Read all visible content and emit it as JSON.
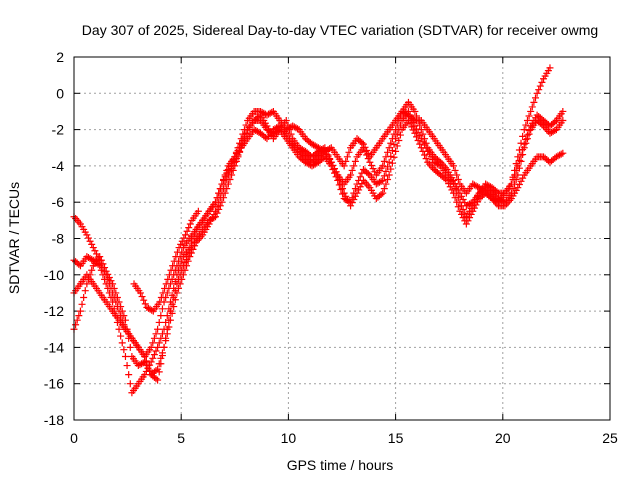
{
  "chart_data": {
    "type": "scatter",
    "title": "Day 307 of 2025, Sidereal Day-to-day VTEC variation (SDTVAR) for receiver owmg",
    "xlabel": "GPS time / hours",
    "ylabel": "SDTVAR / TECUs",
    "xlim": [
      0,
      25
    ],
    "ylim": [
      -18,
      2
    ],
    "xticks": [
      0,
      5,
      10,
      15,
      20,
      25
    ],
    "yticks": [
      -18,
      -16,
      -14,
      -12,
      -10,
      -8,
      -6,
      -4,
      -2,
      0,
      2
    ],
    "grid": true,
    "legend": "none",
    "marker": "plus",
    "color": "#ff0000",
    "series": [
      {
        "x": [
          0.0,
          0.3,
          0.6,
          0.9,
          1.2,
          1.5,
          1.8,
          2.1,
          2.4,
          2.7,
          3.0,
          3.3,
          3.6,
          3.9,
          4.2,
          4.5,
          4.8,
          5.1,
          5.4,
          5.7,
          6.0,
          6.3,
          6.6,
          6.9,
          7.2,
          7.5,
          7.8,
          8.1,
          8.4,
          8.7,
          9.0,
          9.3,
          9.6,
          9.9,
          10.2,
          10.5,
          10.8,
          11.1,
          11.4,
          11.7,
          12.0,
          12.3,
          12.6,
          12.9,
          13.2,
          13.5,
          13.8,
          14.1,
          14.4,
          14.7,
          15.0,
          15.3,
          15.6,
          15.9,
          16.2,
          16.5,
          16.8,
          17.1,
          17.4,
          17.7,
          18.0,
          18.3,
          18.6,
          18.9,
          19.2,
          19.5,
          19.8,
          20.1,
          20.4,
          20.7,
          21.0,
          21.3,
          21.6,
          21.9,
          22.2
        ],
        "y": [
          -11.0,
          -10.5,
          -10.0,
          -10.5,
          -11.0,
          -11.5,
          -12.0,
          -12.5,
          -13.0,
          -13.5,
          -14.0,
          -14.5,
          -14.0,
          -13.0,
          -11.5,
          -10.5,
          -9.5,
          -8.5,
          -8.0,
          -7.5,
          -7.0,
          -6.5,
          -6.0,
          -5.0,
          -4.0,
          -3.5,
          -2.5,
          -1.5,
          -1.0,
          -1.0,
          -1.2,
          -1.0,
          -1.5,
          -2.0,
          -1.8,
          -2.0,
          -2.5,
          -2.8,
          -3.0,
          -3.2,
          -3.0,
          -3.5,
          -4.0,
          -3.0,
          -2.5,
          -2.8,
          -3.5,
          -3.0,
          -2.5,
          -2.0,
          -1.5,
          -1.0,
          -1.2,
          -1.5,
          -1.5,
          -2.0,
          -2.5,
          -3.0,
          -3.5,
          -4.0,
          -5.0,
          -5.5,
          -5.0,
          -5.2,
          -5.5,
          -5.8,
          -6.0,
          -5.5,
          -5.0,
          -3.5,
          -2.0,
          -1.0,
          0.0,
          0.8,
          1.4
        ]
      },
      {
        "x": [
          0.0,
          0.3,
          0.6,
          0.9,
          1.2,
          1.5,
          1.8,
          2.1,
          2.4,
          2.7,
          3.0,
          3.3,
          3.6,
          3.9,
          4.2,
          4.5,
          4.8,
          5.1,
          5.4,
          5.7,
          6.0,
          6.3,
          6.6,
          6.9,
          7.2,
          7.5,
          7.8,
          8.1,
          8.4,
          8.7,
          9.0,
          9.3,
          9.6,
          9.9,
          10.2,
          10.5,
          10.8,
          11.1,
          11.4,
          11.7,
          12.0,
          12.3,
          12.6,
          12.9,
          13.2,
          13.5,
          13.8,
          14.1,
          14.4,
          14.7,
          15.0,
          15.3,
          15.6,
          15.9,
          16.2,
          16.5,
          16.8,
          17.1,
          17.4,
          17.7,
          18.0,
          18.3,
          18.6,
          18.9,
          19.2,
          19.5,
          19.8,
          20.1,
          20.4,
          20.7,
          21.0,
          21.3,
          21.6,
          21.9,
          22.2,
          22.5,
          22.8
        ],
        "y": [
          -6.8,
          -7.2,
          -7.8,
          -8.5,
          -9.2,
          -10.0,
          -11.0,
          -12.0,
          -13.0,
          -13.5,
          -14.0,
          -14.5,
          -15.5,
          -15.8,
          -14.0,
          -12.0,
          -10.5,
          -9.5,
          -8.8,
          -8.0,
          -7.5,
          -7.0,
          -6.8,
          -6.0,
          -5.0,
          -4.0,
          -3.0,
          -2.0,
          -1.5,
          -1.2,
          -1.8,
          -2.5,
          -2.0,
          -1.5,
          -2.5,
          -3.0,
          -3.2,
          -3.5,
          -3.2,
          -3.0,
          -3.8,
          -4.5,
          -5.0,
          -4.5,
          -3.5,
          -3.0,
          -3.8,
          -4.5,
          -4.0,
          -3.0,
          -2.0,
          -1.0,
          -0.5,
          -1.0,
          -2.0,
          -3.0,
          -3.5,
          -3.8,
          -4.2,
          -4.8,
          -5.5,
          -6.2,
          -6.0,
          -5.5,
          -5.2,
          -5.5,
          -5.8,
          -6.0,
          -5.5,
          -4.5,
          -3.0,
          -2.0,
          -1.5,
          -1.8,
          -2.2,
          -2.0,
          -1.5
        ]
      },
      {
        "x": [
          0.0,
          0.3,
          0.6,
          0.9,
          1.2,
          1.5,
          1.8,
          2.1,
          2.4,
          2.7,
          3.0,
          3.3,
          3.6,
          3.9,
          4.2,
          4.5,
          4.8,
          5.1,
          5.4,
          5.7,
          6.0,
          6.3,
          6.6,
          6.9,
          7.2,
          7.5,
          7.8,
          8.1,
          8.4,
          8.7,
          9.0,
          9.3,
          9.6,
          9.9,
          10.2,
          10.5,
          10.8,
          11.1,
          11.4,
          11.7,
          12.0,
          12.3,
          12.6,
          12.9,
          13.2,
          13.5,
          13.8,
          14.1,
          14.4,
          14.7,
          15.0,
          15.3,
          15.6,
          15.9,
          16.2,
          16.5,
          16.8,
          17.1,
          17.4,
          17.7,
          18.0,
          18.3,
          18.6,
          18.9,
          19.2,
          19.5,
          19.8,
          20.1,
          20.4,
          20.7,
          21.0,
          21.3,
          21.6,
          21.9,
          22.2,
          22.5,
          22.8
        ],
        "y": [
          -13.0,
          -12.0,
          -10.5,
          -9.5,
          -9.0,
          -9.8,
          -10.5,
          -11.5,
          -12.5,
          -14.5,
          -15.0,
          -14.8,
          -15.5,
          -15.2,
          -14.0,
          -12.5,
          -11.0,
          -10.0,
          -9.0,
          -8.2,
          -7.8,
          -7.2,
          -6.5,
          -5.5,
          -4.5,
          -3.8,
          -3.0,
          -2.5,
          -2.0,
          -2.2,
          -2.5,
          -2.0,
          -1.8,
          -2.2,
          -2.8,
          -3.2,
          -3.5,
          -3.8,
          -3.5,
          -3.2,
          -3.8,
          -4.5,
          -5.5,
          -6.2,
          -5.5,
          -4.8,
          -5.2,
          -5.8,
          -5.5,
          -4.5,
          -3.2,
          -2.0,
          -1.5,
          -2.2,
          -3.0,
          -3.8,
          -4.2,
          -4.5,
          -4.8,
          -5.5,
          -6.5,
          -7.2,
          -6.5,
          -5.8,
          -5.5,
          -5.8,
          -6.2,
          -6.2,
          -5.8,
          -5.2,
          -4.5,
          -4.0,
          -3.5,
          -3.5,
          -3.8,
          -3.5,
          -3.3
        ]
      },
      {
        "x": [
          0.0,
          0.3,
          0.6,
          0.9,
          1.2,
          1.5,
          1.8,
          2.1,
          2.4,
          2.7,
          3.0,
          3.3,
          3.6,
          3.9,
          4.2,
          4.5,
          4.8,
          5.1,
          5.4,
          5.7,
          6.0,
          6.3,
          6.6,
          6.9,
          7.2,
          7.5,
          7.8,
          8.1,
          8.4,
          8.7,
          9.0,
          9.3,
          9.6,
          9.9,
          10.2,
          10.5,
          10.8,
          11.1,
          11.4,
          11.7,
          12.0,
          12.3,
          12.6,
          12.9,
          13.2,
          13.5,
          13.8,
          14.1,
          14.4,
          14.7,
          15.0,
          15.3,
          15.6,
          15.9,
          16.2,
          16.5,
          16.8,
          17.1,
          17.4,
          17.7,
          18.0,
          18.3,
          18.6,
          18.9,
          19.2,
          19.5,
          19.8,
          20.1,
          20.4,
          20.7,
          21.0,
          21.3,
          21.6,
          21.9,
          22.2,
          22.5,
          22.8
        ],
        "y": [
          -9.2,
          -9.5,
          -9.0,
          -9.2,
          -9.5,
          -10.5,
          -11.5,
          -13.0,
          -14.5,
          -16.5,
          -16.0,
          -15.5,
          -14.8,
          -14.0,
          -13.0,
          -11.5,
          -10.0,
          -9.0,
          -8.5,
          -7.5,
          -7.0,
          -6.5,
          -6.0,
          -5.0,
          -4.2,
          -3.5,
          -2.8,
          -2.0,
          -1.5,
          -1.5,
          -2.0,
          -2.2,
          -2.0,
          -2.5,
          -3.0,
          -3.5,
          -3.8,
          -4.0,
          -3.8,
          -3.5,
          -4.0,
          -4.8,
          -5.8,
          -6.0,
          -5.0,
          -4.2,
          -4.5,
          -5.0,
          -4.8,
          -3.8,
          -2.5,
          -1.5,
          -1.0,
          -1.8,
          -2.5,
          -3.2,
          -3.8,
          -4.0,
          -4.5,
          -5.0,
          -6.0,
          -6.8,
          -6.2,
          -5.5,
          -5.0,
          -5.2,
          -5.5,
          -5.5,
          -5.0,
          -4.0,
          -2.8,
          -1.8,
          -1.2,
          -1.5,
          -1.8,
          -1.5,
          -1.0
        ]
      },
      {
        "x": [
          2.8,
          3.1,
          3.4,
          3.7,
          4.0,
          4.3,
          4.6,
          4.9,
          5.2,
          5.5,
          5.8
        ],
        "y": [
          -10.5,
          -11.0,
          -11.8,
          -12.0,
          -11.5,
          -10.5,
          -9.5,
          -8.5,
          -7.8,
          -7.0,
          -6.5
        ]
      }
    ]
  }
}
